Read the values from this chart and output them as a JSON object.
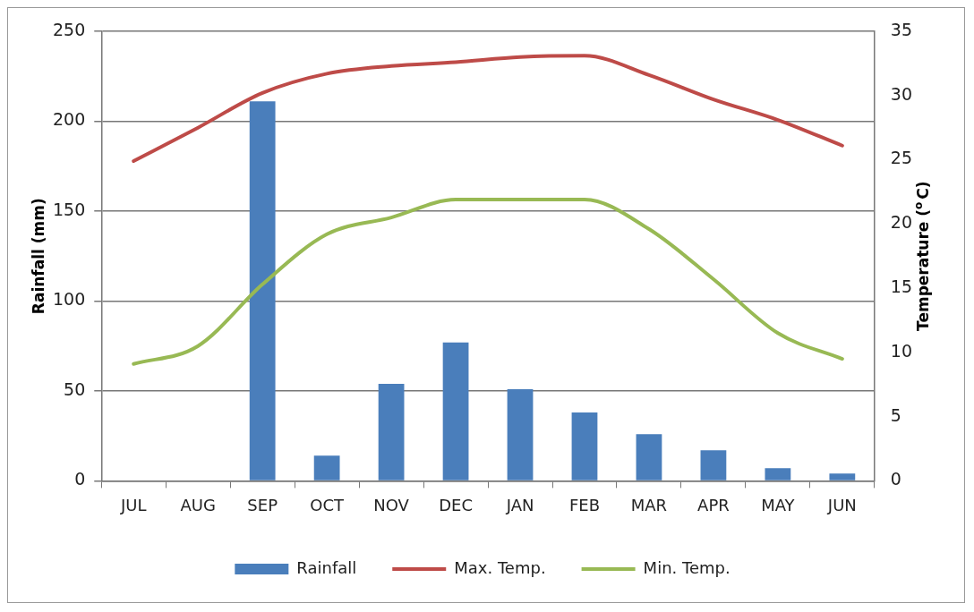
{
  "chart_data": {
    "type": "bar",
    "categories": [
      "JUL",
      "AUG",
      "SEP",
      "OCT",
      "NOV",
      "DEC",
      "JAN",
      "FEB",
      "MAR",
      "APR",
      "MAY",
      "JUN"
    ],
    "ylabel": "Rainfall (mm)",
    "y2label": "Temperature ($^{o}$C)",
    "ylim": [
      0,
      250
    ],
    "yticks": [
      0,
      50,
      100,
      150,
      200,
      250
    ],
    "y2lim": [
      0,
      35
    ],
    "y2ticks": [
      0,
      5,
      10,
      15,
      20,
      25,
      30,
      35
    ],
    "grid": "y",
    "legend": "bottom",
    "series": [
      {
        "name": "Rainfall",
        "color": "#4a7ebb",
        "values": [
          0,
          0,
          211,
          14,
          54,
          77,
          51,
          38,
          26,
          17,
          7,
          4
        ]
      },
      {
        "name": "Max. Temp.",
        "type": "line",
        "axis": "y2",
        "color": "#be4b48",
        "marker": "none",
        "values": [
          24.9,
          27.5,
          30.2,
          31.7,
          32.3,
          32.6,
          33.0,
          33.1,
          31.6,
          29.7,
          28.1,
          26.1
        ]
      },
      {
        "name": "Min. Temp.",
        "type": "line",
        "axis": "y2",
        "color": "#98b954",
        "marker": "none",
        "values": [
          9.1,
          10.5,
          15.3,
          19.2,
          20.5,
          21.9,
          21.9,
          21.9,
          19.6,
          15.7,
          11.5,
          9.5
        ]
      }
    ]
  }
}
